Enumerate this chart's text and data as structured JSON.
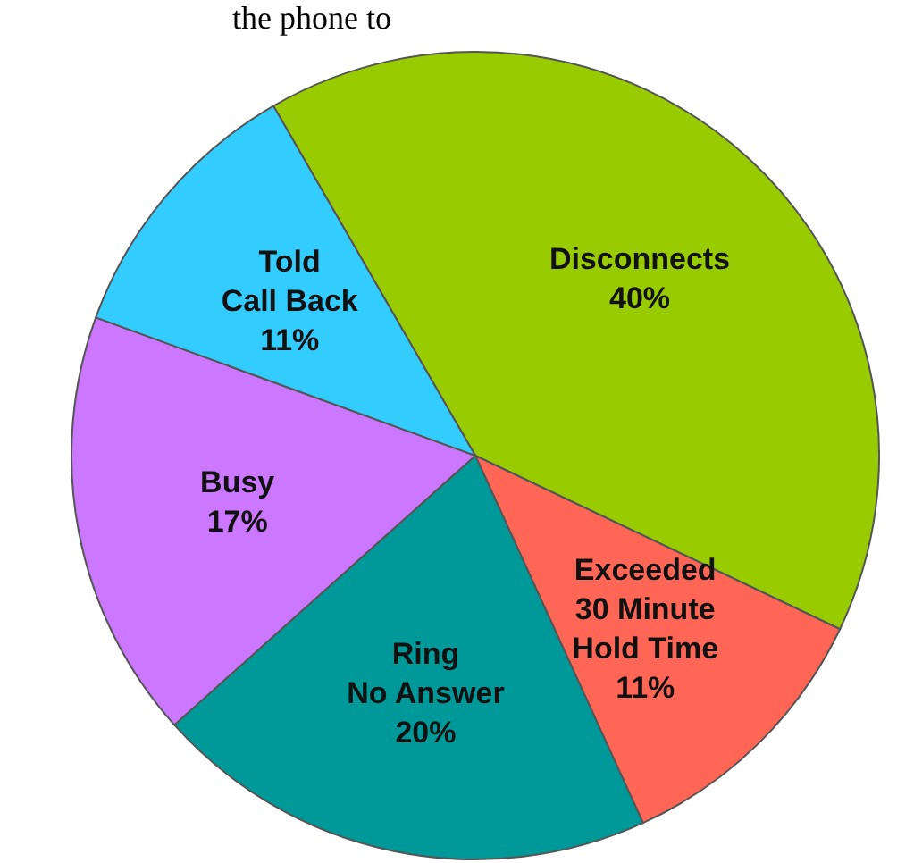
{
  "chart_data": {
    "type": "pie",
    "categories": [
      "Disconnects",
      "Exceeded\n30 Minute\nHold Time",
      "Ring\nNo Answer",
      "Busy",
      "Told\nCall Back"
    ],
    "values": [
      40,
      11,
      20,
      17,
      11
    ],
    "value_labels": [
      "40%",
      "11%",
      "20%",
      "17%",
      "11%"
    ],
    "colors": [
      "#99cc00",
      "#ff6655",
      "#009999",
      "#cc77ff",
      "#33ccff"
    ],
    "annotations": [
      "the phone to"
    ]
  }
}
